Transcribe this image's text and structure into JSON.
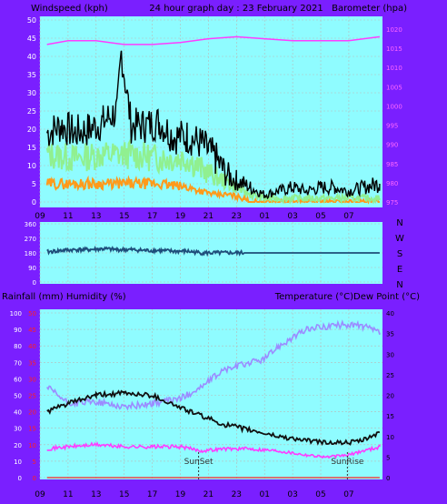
{
  "header": {
    "left": "Windspeed (kph)",
    "center": "24 hour graph day : 23 February 2021",
    "right": "Barometer (hpa)"
  },
  "colors": {
    "frame": "#7a1fff",
    "plot_bg": "#8ffcff",
    "grid": "#b9b9b9",
    "gust": "#000000",
    "avg_wind": "#90f090",
    "orange_wind": "#ff9a1a",
    "barometer": "#ff3cff",
    "direction": "#1e4d7a",
    "temperature": "#111111",
    "dewpoint": "#ff3cff",
    "humidity": "#9b8cff",
    "rain": "#ff2020",
    "tick_text": "#ffffff",
    "right_tick_text": "#ff66ff"
  },
  "x_ticks": [
    "11",
    "13",
    "15",
    "17",
    "19",
    "21",
    "23",
    "01",
    "03",
    "05",
    "07",
    "09"
  ],
  "direction_labels": [
    "N",
    "W",
    "S",
    "E",
    "N"
  ],
  "lower": {
    "left_label": "Rainfall (mm)  Humidity (%)",
    "right_label": "Temperature (°C)Dew Point (°C)",
    "sunset": "SunSet",
    "sunrise": "SunRise"
  },
  "chart_data": [
    {
      "type": "line",
      "name": "wind-barometer",
      "x_range": [
        9.0,
        33.4
      ],
      "ylim_left": [
        0,
        50
      ],
      "yticks_left": [
        "0",
        "5",
        "10",
        "15",
        "20",
        "25",
        "30",
        "35",
        "40",
        "45",
        "50"
      ],
      "ylim_right": [
        975,
        1020
      ],
      "yticks_right": [
        "975",
        "980",
        "985",
        "990",
        "995",
        "1000",
        "1005",
        "1010",
        "1015",
        "1020"
      ],
      "gust": {
        "x": [
          9.5,
          10.5,
          11.5,
          12.5,
          13.5,
          14.5,
          14.8,
          15.5,
          16.5,
          17.5,
          18.5,
          19.5,
          20.5,
          21.0,
          21.5,
          22.0,
          22.5,
          23.0,
          23.5,
          24.0,
          25.0,
          26.0,
          27.0,
          28.0,
          29.0,
          30.0,
          31.0,
          32.0,
          33.2
        ],
        "y": [
          19,
          21,
          19,
          20,
          22,
          25,
          41,
          21,
          21,
          22,
          18,
          18,
          16,
          14,
          12,
          9,
          7,
          6,
          5,
          4,
          2,
          3,
          4,
          3,
          4,
          4,
          3,
          4,
          5
        ]
      },
      "avg_wind": {
        "x": [
          9.5,
          11.5,
          13.5,
          15.5,
          17.5,
          19.5,
          20.5,
          21.5,
          22.5,
          23.5,
          24.0,
          25.0,
          27.0,
          29.0,
          31.0,
          33.2
        ],
        "y": [
          13,
          12,
          13,
          13,
          12,
          12,
          9,
          7,
          5,
          3,
          2,
          1,
          1,
          1,
          1,
          1
        ]
      },
      "orange_wind": {
        "x": [
          9.5,
          11.5,
          13.5,
          15.5,
          17.5,
          19.5,
          20.5,
          21.5,
          22.5,
          23.5,
          24.0,
          25.0,
          27.0,
          29.0,
          31.0,
          33.2
        ],
        "y": [
          5,
          5,
          5,
          5,
          5,
          4,
          3,
          2,
          2,
          1,
          0,
          0,
          0,
          0,
          0,
          0
        ]
      },
      "barometer": {
        "x": [
          9.5,
          11.0,
          13.0,
          15.0,
          17.0,
          19.0,
          21.0,
          23.0,
          25.0,
          27.0,
          29.0,
          31.0,
          33.2
        ],
        "y": [
          1016,
          1017,
          1017,
          1016,
          1016,
          1016.5,
          1017.5,
          1018,
          1017.5,
          1017,
          1017,
          1017,
          1018
        ]
      }
    },
    {
      "type": "line",
      "name": "wind-direction",
      "x_range": [
        9.0,
        33.4
      ],
      "ylim": [
        0,
        360
      ],
      "yticks": [
        "0",
        "90",
        "180",
        "270",
        "360"
      ],
      "direction": {
        "x": [
          9.5,
          10.5,
          11.5,
          12.5,
          13.5,
          14.5,
          15.5,
          16.5,
          17.5,
          18.5,
          19.5,
          20.5,
          21.5,
          22.5,
          23.5,
          25.0,
          27.0,
          29.0,
          31.0,
          33.2
        ],
        "y": [
          185,
          195,
          200,
          200,
          205,
          200,
          200,
          195,
          195,
          190,
          190,
          180,
          180,
          180,
          180,
          180,
          180,
          180,
          180,
          180
        ]
      }
    },
    {
      "type": "line",
      "name": "rain-humidity-temperature",
      "x_range": [
        9.0,
        33.4
      ],
      "ylim_left": [
        0,
        100
      ],
      "yticks_left": [
        "0",
        "10",
        "20",
        "30",
        "40",
        "50",
        "60",
        "70",
        "80",
        "90",
        "100"
      ],
      "ylim_rain": [
        0,
        50
      ],
      "yticks_rain": [
        "0",
        "5",
        "10",
        "15",
        "20",
        "25",
        "30",
        "35",
        "40",
        "45",
        "50"
      ],
      "ylim_right": [
        0,
        40
      ],
      "yticks_right": [
        "0",
        "5",
        "10",
        "15",
        "20",
        "25",
        "30",
        "35",
        "40"
      ],
      "temperature": {
        "x": [
          9.5,
          11.0,
          13.0,
          15.0,
          17.0,
          19.0,
          20.5,
          22.0,
          24.0,
          26.0,
          28.0,
          29.5,
          31.0,
          32.0,
          33.2
        ],
        "y": [
          16,
          18,
          20,
          20.5,
          20,
          17,
          15,
          13,
          11.5,
          10,
          9,
          8.5,
          8.5,
          9,
          11
        ]
      },
      "dewpoint": {
        "x": [
          9.5,
          11.0,
          13.0,
          15.0,
          17.0,
          19.0,
          20.5,
          22.0,
          24.0,
          26.0,
          28.0,
          29.5,
          31.0,
          32.0,
          33.2
        ],
        "y": [
          7,
          7.5,
          8,
          7.5,
          7.5,
          7.5,
          6.5,
          7,
          7,
          6.5,
          5.5,
          5,
          5.5,
          6.5,
          7.5
        ]
      },
      "humidity": {
        "x": [
          9.5,
          11.0,
          13.0,
          15.0,
          17.0,
          19.0,
          20.5,
          22.0,
          24.0,
          25.0,
          26.0,
          27.0,
          28.0,
          29.5,
          31.0,
          32.0,
          33.2
        ],
        "y": [
          55,
          45,
          46,
          43,
          45,
          48,
          55,
          65,
          70,
          72,
          80,
          85,
          90,
          92,
          93,
          92,
          88
        ]
      },
      "rain": {
        "x": [
          9.5,
          33.2
        ],
        "y": [
          0,
          0
        ]
      },
      "sunset_x": 20.3,
      "sunrise_x": 30.9
    }
  ]
}
